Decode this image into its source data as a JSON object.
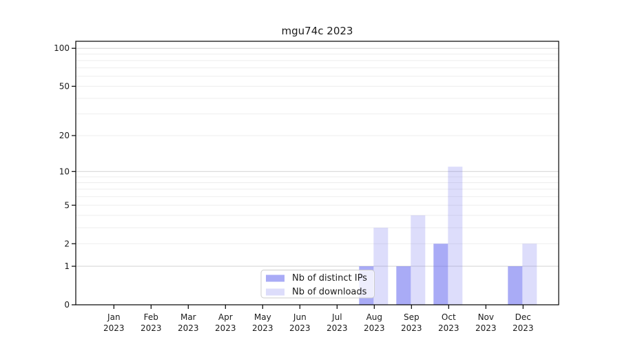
{
  "chart_data": {
    "type": "bar",
    "title": "mgu74c 2023",
    "categories": [
      "Jan 2023",
      "Feb 2023",
      "Mar 2023",
      "Apr 2023",
      "May 2023",
      "Jun 2023",
      "Jul 2023",
      "Aug 2023",
      "Sep 2023",
      "Oct 2023",
      "Nov 2023",
      "Dec 2023"
    ],
    "series": [
      {
        "name": "Nb of distinct IPs",
        "values": [
          0,
          0,
          0,
          0,
          0,
          0,
          0,
          1,
          1,
          2,
          0,
          1
        ],
        "color": "rgba(98,102,238,0.55)"
      },
      {
        "name": "Nb of downloads",
        "values": [
          0,
          0,
          0,
          0,
          0,
          0,
          0,
          3,
          4,
          11,
          0,
          2
        ],
        "color": "rgba(98,102,238,0.22)"
      }
    ],
    "yscale": "log1p",
    "ylim": [
      0,
      113
    ],
    "yticks": [
      100,
      50,
      20,
      10,
      5,
      2,
      1,
      0
    ],
    "gridlines": {
      "major": [
        1,
        10,
        100
      ],
      "minor": [
        2,
        3,
        4,
        5,
        6,
        7,
        8,
        9,
        20,
        30,
        40,
        50,
        60,
        70,
        80,
        90
      ],
      "major_color": "#d2d2d2",
      "minor_color": "#ededed"
    },
    "legend": {
      "position": "lower center"
    },
    "axis_color": "#000000",
    "text_color": "#1a1a1a",
    "xlabel": "",
    "ylabel": ""
  }
}
